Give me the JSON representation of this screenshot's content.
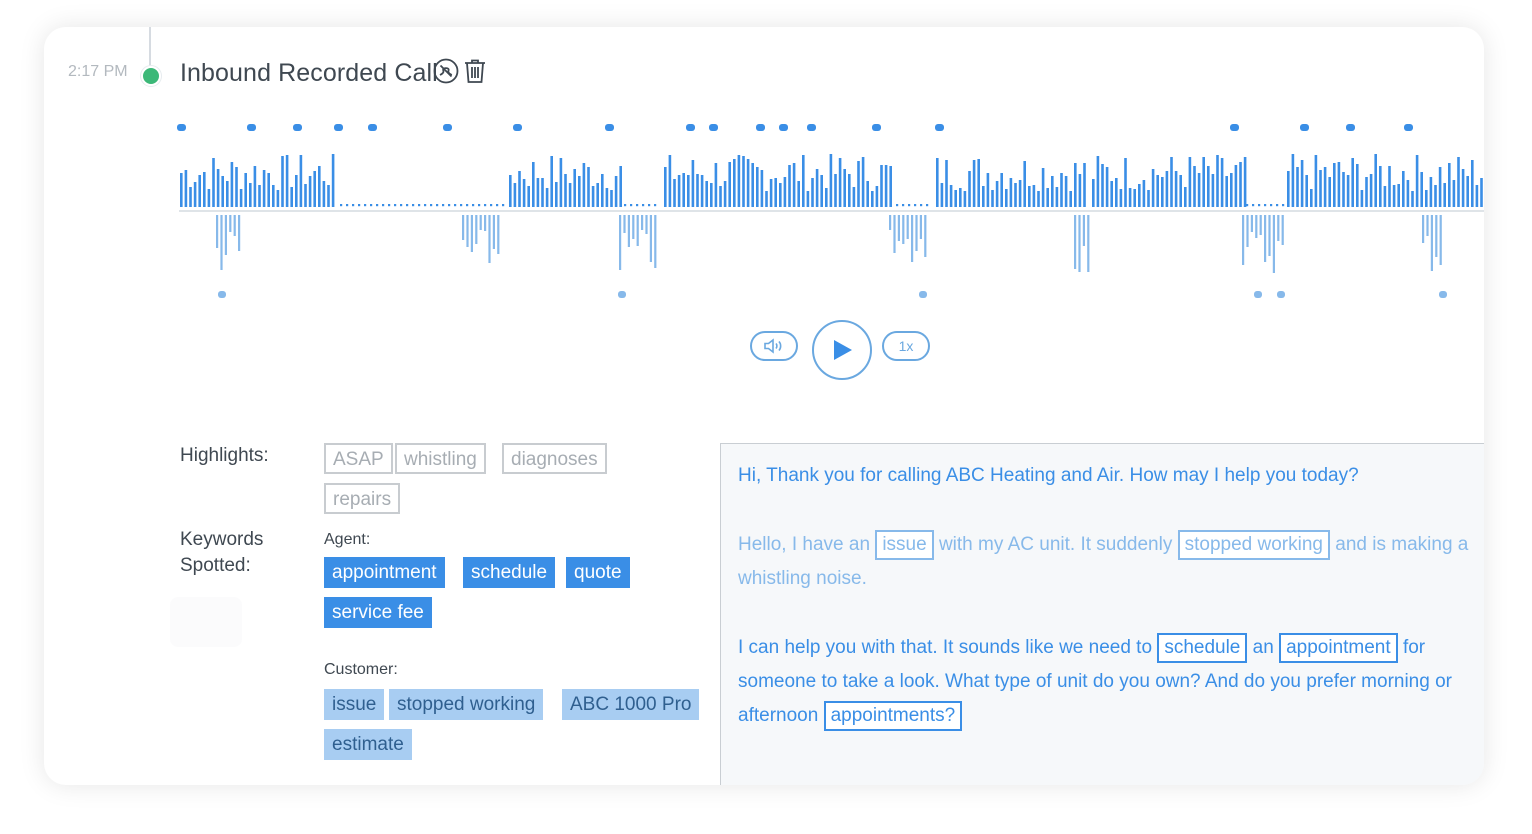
{
  "call": {
    "time": "2:17 PM",
    "title": "Inbound Recorded Call"
  },
  "icons": {
    "call_type": "phone-missed-icon",
    "delete": "trash-icon",
    "volume": "volume-icon",
    "play": "play-icon"
  },
  "controls": {
    "speed": "1x"
  },
  "highlights": {
    "label": "Highlights:",
    "tags": [
      "ASAP",
      "whistling",
      "diagnoses",
      "repairs"
    ]
  },
  "keywords": {
    "label_line1": "Keywords",
    "label_line2": "Spotted:",
    "agent_label": "Agent:",
    "agent_tags": [
      "appointment",
      "schedule",
      "quote",
      "service fee"
    ],
    "customer_label": "Customer:",
    "customer_tags": [
      "issue",
      "stopped working",
      "ABC 1000 Pro",
      "estimate"
    ]
  },
  "transcript": {
    "agent_1": "Hi, Thank you for calling ABC Heating and Air. How may I help you today?",
    "customer_1": {
      "t1": "Hello, I have an",
      "k1": "issue",
      "t2": "with my AC unit. It suddenly",
      "k2": "stopped working",
      "t3": "and is making a",
      "t4": "whistling noise."
    },
    "agent_2": {
      "t1": "I can help you with that. It sounds like we need to",
      "k1": "schedule",
      "t2": "an",
      "k2": "appointment",
      "t3": "for",
      "t4": "someone to take a look. What type of unit do you own? And do you prefer morning or",
      "t5": "afternoon",
      "k3": "appointments?"
    }
  },
  "colors": {
    "accent": "#3a8ee6",
    "accent_light": "#87b9ea",
    "customer_tag": "#a8cdf2",
    "status_dot": "#3cb878",
    "text": "#3f4851",
    "muted": "#b3b9bf"
  }
}
